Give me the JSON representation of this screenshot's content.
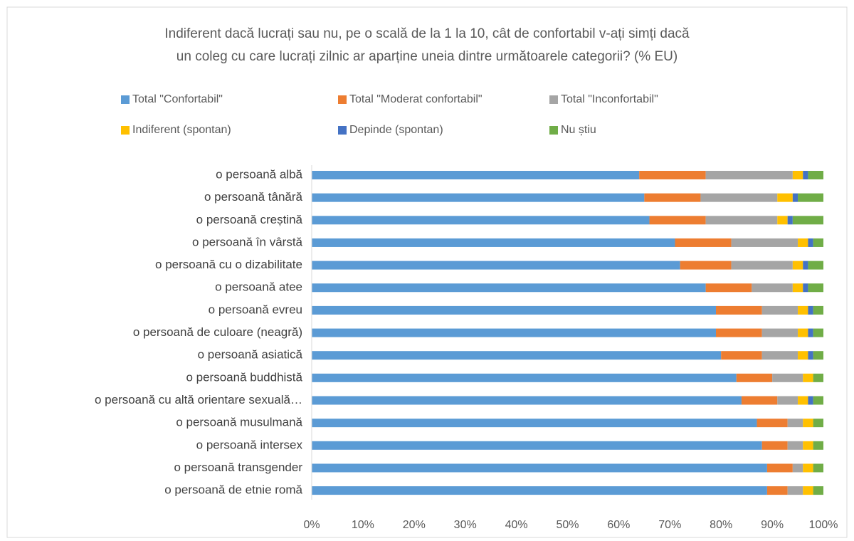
{
  "chart_data": {
    "type": "stacked_bar_horizontal",
    "title": [
      "Indiferent dacă lucrați sau nu, pe o scală de la 1 la 10, cât de confortabil v-ați simți dacă",
      "un coleg cu care lucrați zilnic ar aparține uneia dintre următoarele categorii? (% EU)"
    ],
    "categories": [
      "o persoană albă",
      "o persoană tânără",
      "o persoană creștină",
      "o persoană în vârstă",
      "o persoană cu o dizabilitate",
      "o persoană atee",
      "o persoană evreu",
      "o persoană de culoare (neagră)",
      "o persoană asiatică",
      "o persoană buddhistă",
      "o persoană cu altă orientare sexuală…",
      "o persoană musulmană",
      "o persoană intersex",
      "o persoană transgender",
      "o persoană de etnie romă"
    ],
    "series": [
      {
        "name": "Total \"Confortabil\"",
        "color": "#5b9bd5",
        "values": [
          64,
          65,
          66,
          71,
          72,
          77,
          79,
          79,
          80,
          83,
          84,
          87,
          88,
          89,
          89
        ]
      },
      {
        "name": "Total \"Moderat confortabil\"",
        "color": "#ed7d31",
        "values": [
          13,
          11,
          11,
          11,
          10,
          9,
          9,
          9,
          8,
          7,
          7,
          6,
          5,
          5,
          4
        ]
      },
      {
        "name": "Total \"Inconfortabil\"",
        "color": "#a5a5a5",
        "values": [
          17,
          15,
          14,
          13,
          12,
          8,
          7,
          7,
          7,
          6,
          4,
          3,
          3,
          2,
          3
        ]
      },
      {
        "name": "Indiferent (spontan)",
        "color": "#ffc000",
        "values": [
          2,
          3,
          2,
          2,
          2,
          2,
          2,
          2,
          2,
          2,
          2,
          2,
          2,
          2,
          2
        ]
      },
      {
        "name": "Depinde (spontan)",
        "color": "#4472c4",
        "values": [
          1,
          1,
          1,
          1,
          1,
          1,
          1,
          1,
          1,
          0,
          1,
          0,
          0,
          0,
          0
        ]
      },
      {
        "name": "Nu știu",
        "color": "#70ad47",
        "values": [
          3,
          5,
          6,
          2,
          3,
          3,
          2,
          2,
          2,
          2,
          2,
          2,
          2,
          2,
          2
        ]
      }
    ],
    "xlim": [
      0,
      100
    ],
    "xticks": [
      {
        "value": 0,
        "label": "0%"
      },
      {
        "value": 10,
        "label": "10%"
      },
      {
        "value": 20,
        "label": "20%"
      },
      {
        "value": 30,
        "label": "30%"
      },
      {
        "value": 40,
        "label": "40%"
      },
      {
        "value": 50,
        "label": "50%"
      },
      {
        "value": 60,
        "label": "60%"
      },
      {
        "value": 70,
        "label": "70%"
      },
      {
        "value": 80,
        "label": "80%"
      },
      {
        "value": 90,
        "label": "90%"
      },
      {
        "value": 100,
        "label": "100%"
      }
    ],
    "grid": false
  }
}
